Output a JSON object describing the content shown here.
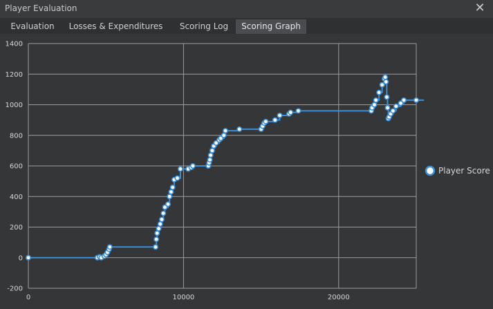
{
  "window": {
    "title": "Player Evaluation",
    "close_icon": "close-icon"
  },
  "tabs": [
    {
      "label": "Evaluation",
      "active": false
    },
    {
      "label": "Losses & Expenditures",
      "active": false
    },
    {
      "label": "Scoring Log",
      "active": false
    },
    {
      "label": "Scoring Graph",
      "active": true
    }
  ],
  "colors": {
    "line": "#3b8fd9",
    "marker_fill": "#ffffff",
    "grid": "#9c9da0",
    "background": "#353638"
  },
  "chart_data": {
    "type": "line",
    "title": "",
    "xlabel": "",
    "ylabel": "",
    "xlim": [
      0,
      25000
    ],
    "ylim": [
      -200,
      1400
    ],
    "x_ticks": [
      0,
      10000,
      20000
    ],
    "y_ticks": [
      -200,
      0,
      200,
      400,
      600,
      800,
      1000,
      1200,
      1400
    ],
    "grid": true,
    "legend_position": "right",
    "series": [
      {
        "name": "Player Score",
        "step": true,
        "points": [
          [
            0,
            0
          ],
          [
            4450,
            0
          ],
          [
            4600,
            5
          ],
          [
            4700,
            0
          ],
          [
            4900,
            10
          ],
          [
            5000,
            20
          ],
          [
            5100,
            35
          ],
          [
            5200,
            55
          ],
          [
            5250,
            70
          ],
          [
            8200,
            70
          ],
          [
            8250,
            120
          ],
          [
            8300,
            160
          ],
          [
            8400,
            190
          ],
          [
            8500,
            220
          ],
          [
            8600,
            250
          ],
          [
            8700,
            290
          ],
          [
            8800,
            330
          ],
          [
            9000,
            350
          ],
          [
            9100,
            400
          ],
          [
            9200,
            430
          ],
          [
            9300,
            460
          ],
          [
            9400,
            510
          ],
          [
            9600,
            520
          ],
          [
            9800,
            580
          ],
          [
            10300,
            580
          ],
          [
            10500,
            590
          ],
          [
            10600,
            600
          ],
          [
            11600,
            600
          ],
          [
            11650,
            620
          ],
          [
            11700,
            640
          ],
          [
            11750,
            670
          ],
          [
            11850,
            700
          ],
          [
            11950,
            730
          ],
          [
            12100,
            750
          ],
          [
            12300,
            770
          ],
          [
            12400,
            780
          ],
          [
            12600,
            800
          ],
          [
            12700,
            830
          ],
          [
            13600,
            840
          ],
          [
            15000,
            840
          ],
          [
            15100,
            860
          ],
          [
            15200,
            880
          ],
          [
            15300,
            890
          ],
          [
            15900,
            900
          ],
          [
            16200,
            930
          ],
          [
            16800,
            940
          ],
          [
            16900,
            950
          ],
          [
            17400,
            960
          ],
          [
            22100,
            960
          ],
          [
            22150,
            980
          ],
          [
            22300,
            1000
          ],
          [
            22400,
            1030
          ],
          [
            22600,
            1080
          ],
          [
            22800,
            1130
          ],
          [
            22950,
            1170
          ],
          [
            23000,
            1180
          ],
          [
            23050,
            1150
          ],
          [
            23100,
            1050
          ],
          [
            23150,
            980
          ],
          [
            23200,
            910
          ],
          [
            23250,
            920
          ],
          [
            23350,
            940
          ],
          [
            23500,
            960
          ],
          [
            23700,
            990
          ],
          [
            24000,
            1010
          ],
          [
            24200,
            1030
          ],
          [
            25500,
            1030
          ]
        ]
      }
    ]
  }
}
